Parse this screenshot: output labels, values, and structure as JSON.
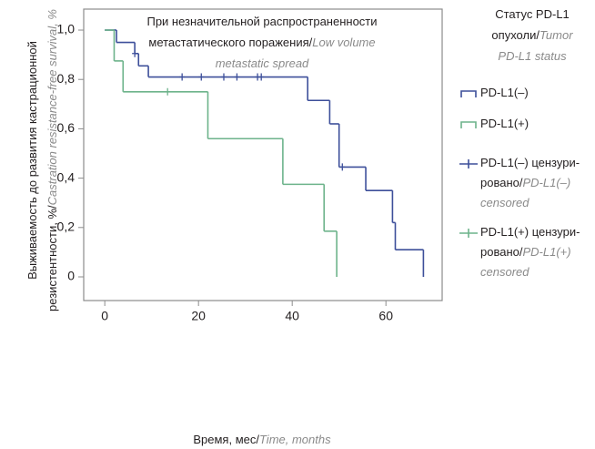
{
  "chart_data": {
    "type": "survival",
    "title": {
      "ru": [
        "При незначительной распространенности",
        "метастатического поражения/"
      ],
      "en": [
        "Low volume",
        "metastatic spread"
      ]
    },
    "legend_title": {
      "ru": [
        "Статус PD-L1",
        "опухоли/"
      ],
      "en": [
        "Tumor",
        "PD-L1 status"
      ]
    },
    "y_label": {
      "ru": [
        "Выживаемость до развития кастрационной",
        "резистентности,  %/"
      ],
      "en": [
        "Castration resistance-free survival,  %"
      ]
    },
    "x_label": {
      "ru": [
        "Время, мес/"
      ],
      "en": [
        "Time, months"
      ]
    },
    "xlim": [
      -4.5,
      72
    ],
    "ylim": [
      -0.096,
      1.085
    ],
    "xticks": [
      0,
      20,
      40,
      60
    ],
    "yticks": [
      {
        "value": 1.0,
        "label": "1,0"
      },
      {
        "value": 0.8,
        "label": "0,8"
      },
      {
        "value": 0.6,
        "label": "0,6"
      },
      {
        "value": 0.4,
        "label": "0,4"
      },
      {
        "value": 0.2,
        "label": "0,2"
      },
      0
    ],
    "series": [
      {
        "name": {
          "ru": [
            "PD-L1(–)"
          ],
          "en": []
        },
        "kind": "step",
        "color": "#3d4f9a",
        "x": [
          0,
          2.5,
          6.4,
          7.2,
          9.3,
          43.3,
          48,
          50,
          55.7,
          61.4,
          62,
          68
        ],
        "values": [
          1.0,
          0.95,
          0.905,
          0.855,
          0.81,
          0.715,
          0.62,
          0.445,
          0.35,
          0.22,
          0.11,
          0
        ]
      },
      {
        "name": {
          "ru": [
            "PD-L1(+)"
          ],
          "en": []
        },
        "kind": "step",
        "color": "#6db38b",
        "x": [
          0,
          2,
          3.9,
          22,
          38,
          46.8,
          49.5
        ],
        "values": [
          1.0,
          0.875,
          0.75,
          0.56,
          0.375,
          0.185,
          0
        ]
      },
      {
        "name": {
          "ru": [
            "PD-L1(–) цензури-",
            "ровано/"
          ],
          "en": [
            "PD-L1(–)",
            "censored"
          ]
        },
        "kind": "censor",
        "color": "#3d4f9a",
        "x": [
          6.4,
          16.5,
          20.6,
          25.4,
          28.2,
          32.6,
          33.4,
          50.7
        ],
        "values": [
          0.905,
          0.81,
          0.81,
          0.81,
          0.81,
          0.81,
          0.81,
          0.445
        ]
      },
      {
        "name": {
          "ru": [
            "PD-L1(+) цензури-",
            "ровано/"
          ],
          "en": [
            "PD-L1(+)",
            "censored"
          ]
        },
        "kind": "censor",
        "color": "#6db38b",
        "x": [
          13.4
        ],
        "values": [
          0.75
        ]
      }
    ]
  }
}
